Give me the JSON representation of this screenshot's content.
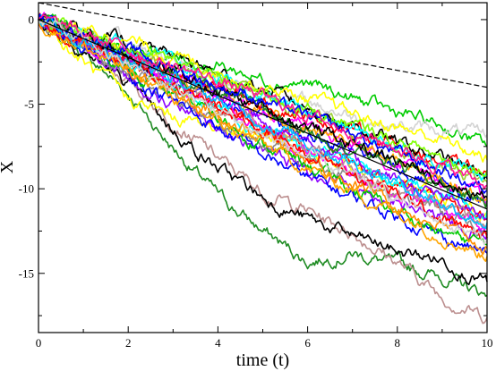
{
  "chart_data": {
    "type": "line",
    "title": "",
    "xlabel": "time (t)",
    "ylabel": "X",
    "xlim": [
      0,
      10
    ],
    "ylim": [
      -18.5,
      1
    ],
    "xticks": [
      0,
      2,
      4,
      6,
      8,
      10
    ],
    "yticks": [
      0,
      -5,
      -10,
      -15
    ],
    "grid": false,
    "legend": "none",
    "colors": [
      "#ff0000",
      "#000000",
      "#0000ff",
      "#00cc00",
      "#ff00ff",
      "#00ffff",
      "#ffff00",
      "#8b00ff",
      "#ff8c00",
      "#ffa500",
      "#9acd32",
      "#888888",
      "#bc8f8f",
      "#1e8b22",
      "#d3d3d3",
      "#7fff00",
      "#00bfff",
      "#ff1493"
    ],
    "series": [
      {
        "style": "solid",
        "color": "#000000",
        "x": [
          0,
          10
        ],
        "y": [
          0,
          -11.2
        ]
      },
      {
        "style": "dashed",
        "color": "#000000",
        "x": [
          0,
          10
        ],
        "y": [
          1,
          -4
        ]
      },
      {
        "style": "trajectory",
        "color": "#1e8b22",
        "x": [
          0,
          1,
          2,
          3,
          4,
          5,
          6,
          7,
          8,
          9,
          10
        ],
        "y": [
          0,
          -2,
          -4.3,
          -7.6,
          -10.4,
          -12.5,
          -14.3,
          -13.8,
          -14.5,
          -15.2,
          -16.3
        ]
      },
      {
        "style": "trajectory",
        "color": "#bc8f8f",
        "x": [
          0,
          1,
          2,
          3,
          4,
          5,
          6,
          7,
          8,
          9,
          10
        ],
        "y": [
          0,
          -1.5,
          -3.6,
          -6,
          -8.2,
          -10.2,
          -11.3,
          -12.6,
          -14.3,
          -16.4,
          -17.6
        ]
      },
      {
        "style": "trajectory",
        "color": "#000000",
        "x": [
          0,
          1,
          2,
          3,
          4,
          5,
          6,
          7,
          8,
          9,
          10
        ],
        "y": [
          0,
          -1.8,
          -3.8,
          -6.5,
          -8.8,
          -10.5,
          -11.8,
          -12.8,
          -13.7,
          -14.2,
          -15.5
        ]
      },
      {
        "style": "trajectory",
        "color": "#00cc00",
        "x": [
          0,
          1,
          2,
          3,
          4,
          5,
          6,
          7,
          8,
          9,
          10
        ],
        "y": [
          0,
          -0.8,
          -1.6,
          -2.3,
          -2.7,
          -3.5,
          -3.8,
          -4.7,
          -5.5,
          -6.3,
          -7.5
        ]
      },
      {
        "style": "trajectory",
        "color": "#ffff00",
        "x": [
          0,
          1,
          2,
          3,
          4,
          5,
          6,
          7,
          8,
          9,
          10
        ],
        "y": [
          0,
          -2.5,
          -4.7,
          -5.8,
          -6.3,
          -6.8,
          -7.8,
          -8.8,
          -9.8,
          -10.5,
          -11.5
        ]
      },
      {
        "style": "trajectory",
        "color": "#ff0000",
        "x": [
          0,
          1,
          2,
          3,
          4,
          5,
          6,
          7,
          8,
          9,
          10
        ],
        "y": [
          0,
          -1.3,
          -2.7,
          -3.9,
          -5.1,
          -6.2,
          -7.6,
          -8.7,
          -9.5,
          -10.8,
          -11.8
        ]
      },
      {
        "style": "trajectory",
        "color": "#0000ff",
        "x": [
          0,
          1,
          2,
          3,
          4,
          5,
          6,
          7,
          8,
          9,
          10
        ],
        "y": [
          0,
          -1,
          -2.3,
          -3.6,
          -4.6,
          -5.6,
          -6.8,
          -7.7,
          -8.8,
          -10,
          -11
        ]
      },
      {
        "style": "trajectory",
        "color": "#ff00ff",
        "x": [
          0,
          1,
          2,
          3,
          4,
          5,
          6,
          7,
          8,
          9,
          10
        ],
        "y": [
          0,
          -0.9,
          -1.9,
          -3.2,
          -4.2,
          -5.5,
          -6.2,
          -7.5,
          -8.5,
          -9.6,
          -10.8
        ]
      },
      {
        "style": "trajectory",
        "color": "#00ffff",
        "x": [
          0,
          1,
          2,
          3,
          4,
          5,
          6,
          7,
          8,
          9,
          10
        ],
        "y": [
          0,
          -1.2,
          -2.8,
          -4,
          -5.5,
          -6.8,
          -7.5,
          -8.4,
          -9.5,
          -10.3,
          -11.3
        ]
      },
      {
        "style": "trajectory",
        "color": "#ffa500",
        "x": [
          0,
          1,
          2,
          3,
          4,
          5,
          6,
          7,
          8,
          9,
          10
        ],
        "y": [
          0,
          -1.1,
          -2.2,
          -3.3,
          -4.6,
          -5.3,
          -6.6,
          -7.4,
          -8.4,
          -9.4,
          -10.5
        ]
      },
      {
        "style": "trajectory",
        "color": "#8b00ff",
        "x": [
          0,
          1,
          2,
          3,
          4,
          5,
          6,
          7,
          8,
          9,
          10
        ],
        "y": [
          0,
          -1.6,
          -3.4,
          -5,
          -6.6,
          -7.6,
          -8.9,
          -9.8,
          -10.8,
          -11.8,
          -12.7
        ]
      },
      {
        "style": "trajectory",
        "color": "#888888",
        "x": [
          0,
          1,
          2,
          3,
          4,
          5,
          6,
          7,
          8,
          9,
          10
        ],
        "y": [
          0,
          -1.4,
          -3,
          -4.6,
          -6.2,
          -7.2,
          -8.2,
          -9.4,
          -10.3,
          -11.4,
          -12.6
        ]
      },
      {
        "style": "trajectory",
        "color": "#d3d3d3",
        "x": [
          0,
          1,
          2,
          3,
          4,
          5,
          6,
          7,
          8,
          9,
          10
        ],
        "y": [
          0,
          -0.7,
          -1.5,
          -2.4,
          -3.3,
          -4.3,
          -4.9,
          -5.7,
          -6.3,
          -6.6,
          -6.8
        ]
      },
      {
        "style": "trajectory",
        "color": "#9acd32",
        "x": [
          0,
          1,
          2,
          3,
          4,
          5,
          6,
          7,
          8,
          9,
          10
        ],
        "y": [
          0,
          -0.8,
          -1.8,
          -2.9,
          -3.8,
          -4.6,
          -5.6,
          -6.6,
          -7.6,
          -8.5,
          -9.6
        ]
      },
      {
        "style": "trajectory",
        "color": "#ff0000",
        "x": [
          0,
          1,
          2,
          3,
          4,
          5,
          6,
          7,
          8,
          9,
          10
        ],
        "y": [
          0,
          -1.1,
          -2.5,
          -3.2,
          -4.1,
          -4.9,
          -5.7,
          -6.4,
          -7.5,
          -8.4,
          -9.2
        ]
      },
      {
        "style": "trajectory",
        "color": "#000000",
        "x": [
          0,
          1,
          2,
          3,
          4,
          5,
          6,
          7,
          8,
          9,
          10
        ],
        "y": [
          0,
          -0.6,
          -1.4,
          -2.1,
          -3.2,
          -4.1,
          -5.2,
          -6.2,
          -7.3,
          -8.2,
          -9.4
        ]
      },
      {
        "style": "trajectory",
        "color": "#0000ff",
        "x": [
          0,
          1,
          2,
          3,
          4,
          5,
          6,
          7,
          8,
          9,
          10
        ],
        "y": [
          0,
          -1.5,
          -3.2,
          -4.9,
          -6.4,
          -8,
          -9.3,
          -10.5,
          -11.6,
          -12.8,
          -13.8
        ]
      },
      {
        "style": "trajectory",
        "color": "#00cc00",
        "x": [
          0,
          1,
          2,
          3,
          4,
          5,
          6,
          7,
          8,
          9,
          10
        ],
        "y": [
          0,
          -1.3,
          -2.9,
          -4.4,
          -5.8,
          -7.4,
          -8.6,
          -10,
          -11.3,
          -12.6,
          -13.3
        ]
      },
      {
        "style": "trajectory",
        "color": "#ff00ff",
        "x": [
          0,
          1,
          2,
          3,
          4,
          5,
          6,
          7,
          8,
          9,
          10
        ],
        "y": [
          0,
          -1.2,
          -2.4,
          -3.8,
          -5,
          -6.4,
          -7.8,
          -9,
          -10.2,
          -11.2,
          -12.4
        ]
      },
      {
        "style": "trajectory",
        "color": "#ff8c00",
        "x": [
          0,
          1,
          2,
          3,
          4,
          5,
          6,
          7,
          8,
          9,
          10
        ],
        "y": [
          0,
          -1.4,
          -2.8,
          -4.3,
          -5.6,
          -6.9,
          -8.2,
          -9.6,
          -10.9,
          -12.2,
          -13.5
        ]
      },
      {
        "style": "trajectory",
        "color": "#00ffff",
        "x": [
          0,
          1,
          2,
          3,
          4,
          5,
          6,
          7,
          8,
          9,
          10
        ],
        "y": [
          0,
          -0.9,
          -1.7,
          -2.7,
          -3.6,
          -4.6,
          -5.4,
          -6.5,
          -7.4,
          -8.4,
          -9.2
        ]
      },
      {
        "style": "trajectory",
        "color": "#ffff00",
        "x": [
          0,
          1,
          2,
          3,
          4,
          5,
          6,
          7,
          8,
          9,
          10
        ],
        "y": [
          0,
          -0.6,
          -1.2,
          -2.2,
          -3,
          -3.9,
          -4.7,
          -5.6,
          -6.4,
          -7.1,
          -8.3
        ]
      },
      {
        "style": "trajectory",
        "color": "#8b00ff",
        "x": [
          0,
          1,
          2,
          3,
          4,
          5,
          6,
          7,
          8,
          9,
          10
        ],
        "y": [
          0,
          -1.1,
          -2.3,
          -3.3,
          -4.5,
          -5.8,
          -7.1,
          -8.3,
          -9.5,
          -10.6,
          -11.8
        ]
      },
      {
        "style": "trajectory",
        "color": "#7fff00",
        "x": [
          0,
          1,
          2,
          3,
          4,
          5,
          6,
          7,
          8,
          9,
          10
        ],
        "y": [
          0,
          -0.7,
          -1.6,
          -2.5,
          -3.5,
          -4.4,
          -5.3,
          -6.3,
          -7.2,
          -8.1,
          -8.9
        ]
      },
      {
        "style": "trajectory",
        "color": "#bc8f8f",
        "x": [
          0,
          1,
          2,
          3,
          4,
          5,
          6,
          7,
          8,
          9,
          10
        ],
        "y": [
          0,
          -1.2,
          -2.5,
          -3.8,
          -5.1,
          -6.5,
          -7.5,
          -8.7,
          -10,
          -11.1,
          -12.1
        ]
      },
      {
        "style": "trajectory",
        "color": "#1e8b22",
        "x": [
          0,
          1,
          2,
          3,
          4,
          5,
          6,
          7,
          8,
          9,
          10
        ],
        "y": [
          0,
          -1.1,
          -2.1,
          -3.3,
          -4.3,
          -5.4,
          -6.4,
          -7.6,
          -8.5,
          -9.8,
          -10.7
        ]
      },
      {
        "style": "trajectory",
        "color": "#000000",
        "x": [
          0,
          1,
          2,
          3,
          4,
          5,
          6,
          7,
          8,
          9,
          10
        ],
        "y": [
          0,
          -1,
          -2.1,
          -3.1,
          -4.2,
          -5.2,
          -6.3,
          -7.3,
          -8.4,
          -9.4,
          -10.5
        ]
      },
      {
        "style": "trajectory",
        "color": "#ff0000",
        "x": [
          0,
          1,
          2,
          3,
          4,
          5,
          6,
          7,
          8,
          9,
          10
        ],
        "y": [
          0,
          -1.3,
          -2.6,
          -3.9,
          -5.2,
          -6.5,
          -7.8,
          -9.1,
          -10.4,
          -11.7,
          -12.9
        ]
      },
      {
        "style": "trajectory",
        "color": "#0000ff",
        "x": [
          0,
          1,
          2,
          3,
          4,
          5,
          6,
          7,
          8,
          9,
          10
        ],
        "y": [
          0,
          -0.8,
          -1.9,
          -2.8,
          -3.9,
          -4.7,
          -5.8,
          -6.8,
          -7.9,
          -8.9,
          -10.1
        ]
      },
      {
        "style": "trajectory",
        "color": "#ffa500",
        "x": [
          0,
          1,
          2,
          3,
          4,
          5,
          6,
          7,
          8,
          9,
          10
        ],
        "y": [
          0,
          -1.6,
          -3.1,
          -4.5,
          -6.1,
          -7.4,
          -8.8,
          -10.1,
          -11.4,
          -12.7,
          -14
        ]
      },
      {
        "style": "trajectory",
        "color": "#00bfff",
        "x": [
          0,
          1,
          2,
          3,
          4,
          5,
          6,
          7,
          8,
          9,
          10
        ],
        "y": [
          0,
          -1.2,
          -2.3,
          -3.5,
          -4.8,
          -6,
          -7.2,
          -8.4,
          -9.6,
          -10.8,
          -12
        ]
      },
      {
        "style": "trajectory",
        "color": "#ff1493",
        "x": [
          0,
          1,
          2,
          3,
          4,
          5,
          6,
          7,
          8,
          9,
          10
        ],
        "y": [
          0,
          -0.9,
          -1.8,
          -2.7,
          -3.6,
          -4.6,
          -5.6,
          -6.6,
          -7.6,
          -8.6,
          -9.8
        ]
      },
      {
        "style": "trajectory",
        "color": "#d3d3d3",
        "x": [
          0,
          1,
          2,
          3,
          4,
          5,
          6,
          7,
          8,
          9,
          10
        ],
        "y": [
          0,
          -1.3,
          -2.7,
          -4.1,
          -5.4,
          -6.8,
          -8.1,
          -9.4,
          -10.6,
          -11.9,
          -13.1
        ]
      }
    ]
  }
}
